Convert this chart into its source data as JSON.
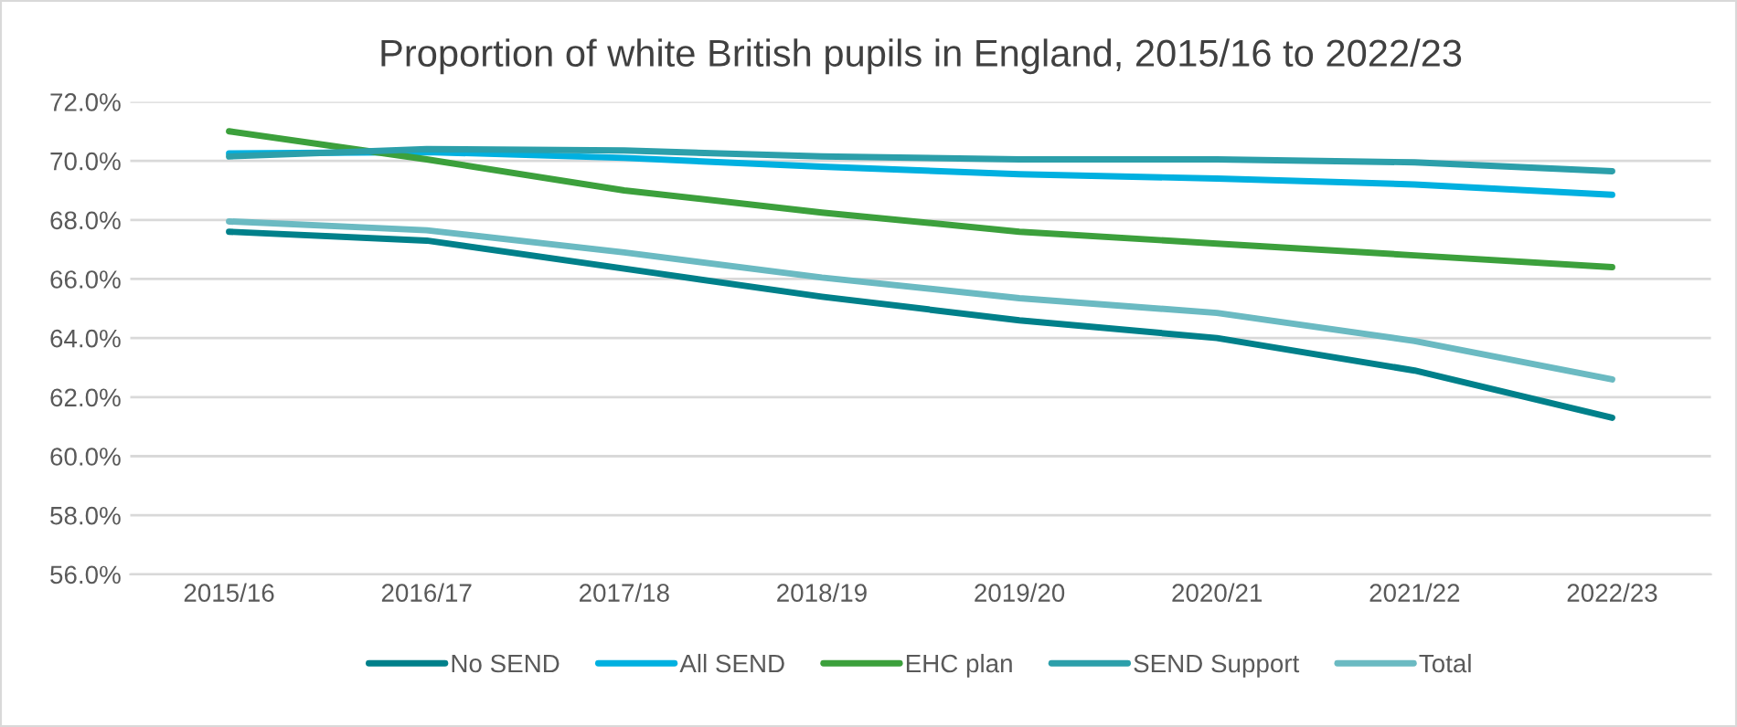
{
  "chart_data": {
    "type": "line",
    "title": "Proportion of white British pupils in England, 2015/16 to 2022/23",
    "categories": [
      "2015/16",
      "2016/17",
      "2017/18",
      "2018/19",
      "2019/20",
      "2020/21",
      "2021/22",
      "2022/23"
    ],
    "series": [
      {
        "name": "No SEND",
        "color": "#00808a",
        "values": [
          67.6,
          67.3,
          66.35,
          65.4,
          64.6,
          64.0,
          62.9,
          61.3
        ]
      },
      {
        "name": "All SEND",
        "color": "#00b0e0",
        "values": [
          70.25,
          70.3,
          70.1,
          69.8,
          69.55,
          69.4,
          69.2,
          68.85
        ]
      },
      {
        "name": "EHC plan",
        "color": "#3ca03c",
        "values": [
          71.0,
          70.05,
          69.0,
          68.25,
          67.6,
          67.2,
          66.8,
          66.4
        ]
      },
      {
        "name": "SEND Support",
        "color": "#2c9faa",
        "values": [
          70.15,
          70.4,
          70.35,
          70.15,
          70.05,
          70.05,
          69.95,
          69.65
        ]
      },
      {
        "name": "Total",
        "color": "#6bbac2",
        "values": [
          67.95,
          67.65,
          66.9,
          66.05,
          65.35,
          64.85,
          63.9,
          62.6
        ]
      }
    ],
    "ylim": [
      56,
      72
    ],
    "yticks": [
      {
        "value": 56,
        "label": "56.0%"
      },
      {
        "value": 58,
        "label": "58.0%"
      },
      {
        "value": 60,
        "label": "60.0%"
      },
      {
        "value": 62,
        "label": "62.0%"
      },
      {
        "value": 64,
        "label": "64.0%"
      },
      {
        "value": 66,
        "label": "66.0%"
      },
      {
        "value": 68,
        "label": "68.0%"
      },
      {
        "value": 70,
        "label": "70.0%"
      },
      {
        "value": 72,
        "label": "72.0%"
      }
    ],
    "grid": "y",
    "legend": "bottom",
    "marker": "none",
    "line_style": "solid"
  }
}
